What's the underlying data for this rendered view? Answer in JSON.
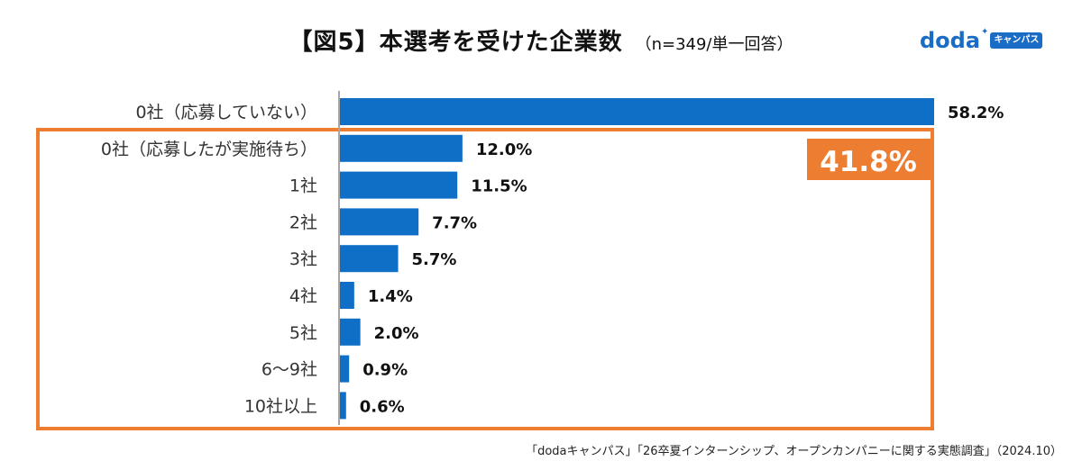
{
  "title": {
    "main": "【図5】本選考を受けた企業数",
    "sub": "（n=349/単一回答）"
  },
  "logo": {
    "word": "doda",
    "badge": "キャンパス"
  },
  "highlight": {
    "label": "41.8%",
    "color": "#ED7D31"
  },
  "source": "「dodaキャンパス」「26卒夏インターンシップ、オープンカンパニーに関する実態調査」（2024.10）",
  "colors": {
    "bar": "#0F6FC6",
    "axis": "#A6A6A6",
    "highlight": "#ED7D31"
  },
  "chart_data": {
    "type": "bar",
    "orientation": "horizontal",
    "title": "【図5】本選考を受けた企業数",
    "xlim": [
      0,
      58.2
    ],
    "grid": false,
    "legend": "none",
    "categories": [
      "0社（応募していない）",
      "0社（応募したが実施待ち）",
      "1社",
      "2社",
      "3社",
      "4社",
      "5社",
      "6〜9社",
      "10社以上"
    ],
    "values": [
      58.2,
      12.0,
      11.5,
      7.7,
      5.7,
      1.4,
      2.0,
      0.9,
      0.6
    ],
    "value_labels": [
      "58.2%",
      "12.0%",
      "11.5%",
      "7.7%",
      "5.7%",
      "1.4%",
      "2.0%",
      "0.9%",
      "0.6%"
    ]
  }
}
